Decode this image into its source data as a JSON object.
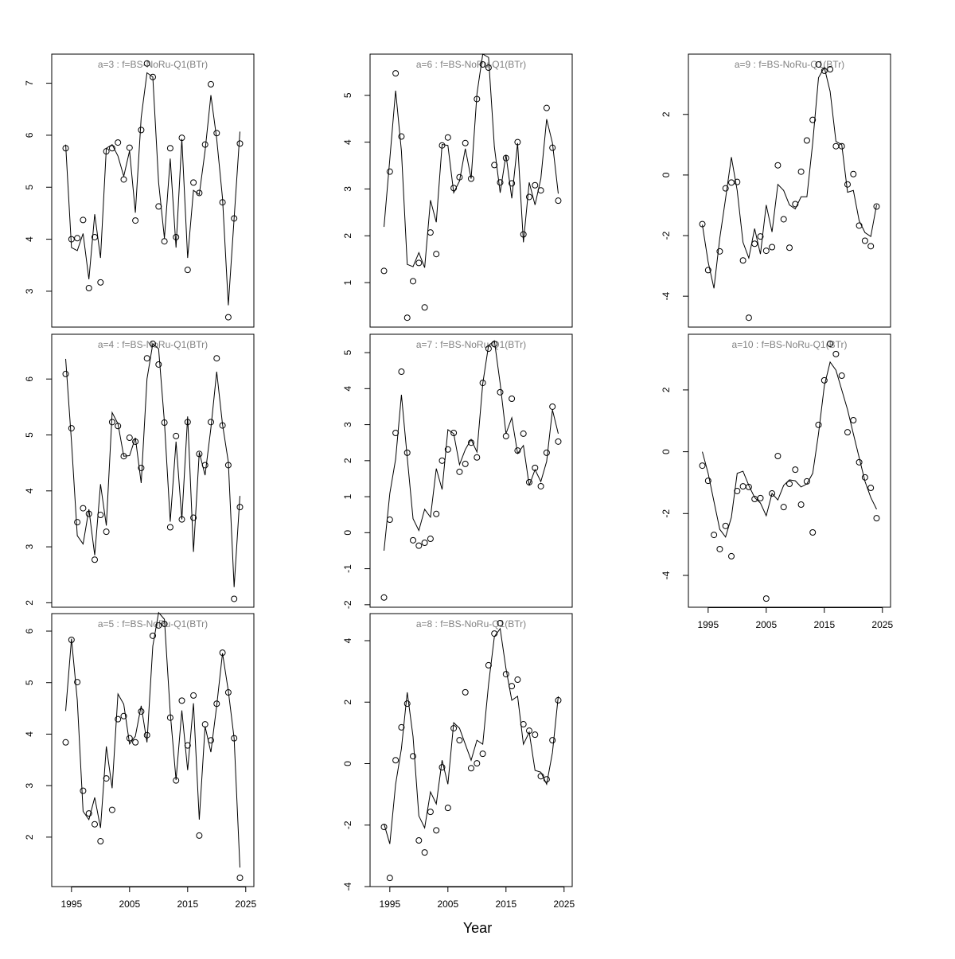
{
  "chart_data": [
    {
      "type": "line",
      "title": "a=3  :  f=BS-NoRu-Q1(BTr)",
      "x": [
        1994,
        1995,
        1996,
        1997,
        1998,
        1999,
        2000,
        2001,
        2002,
        2003,
        2004,
        2005,
        2006,
        2007,
        2008,
        2009,
        2010,
        2011,
        2012,
        2013,
        2014,
        2015,
        2016,
        2017,
        2018,
        2019,
        2020,
        2021,
        2022,
        2023,
        2024
      ],
      "series": [
        {
          "style": "points",
          "color": "#000000",
          "values": [
            5.75,
            4.0,
            4.02,
            4.37,
            3.06,
            4.04,
            3.17,
            5.69,
            5.75,
            5.86,
            5.15,
            5.76,
            4.36,
            6.1,
            7.38,
            7.12,
            4.63,
            3.96,
            5.75,
            4.04,
            5.95,
            3.41,
            5.09,
            4.89,
            5.82,
            6.98,
            6.04,
            4.71,
            2.5,
            4.4,
            5.84
          ]
        },
        {
          "style": "line",
          "color": "#000000",
          "values": [
            5.82,
            3.84,
            3.78,
            4.11,
            3.23,
            4.48,
            3.64,
            5.75,
            5.82,
            5.6,
            5.21,
            5.7,
            4.51,
            6.34,
            7.2,
            7.12,
            5.09,
            4.02,
            5.55,
            3.84,
            5.93,
            3.64,
            4.94,
            4.86,
            5.7,
            6.77,
            5.93,
            4.79,
            2.73,
            4.4,
            6.07
          ]
        }
      ],
      "xlim": [
        1991.6,
        2026.4
      ],
      "ylim": [
        2.31,
        7.56
      ],
      "yticks": [
        3,
        4,
        5,
        6,
        7
      ]
    },
    {
      "type": "line",
      "title": "a=4  :  f=BS-NoRu-Q1(BTr)",
      "x": [
        1994,
        1995,
        1996,
        1997,
        1998,
        1999,
        2000,
        2001,
        2002,
        2003,
        2004,
        2005,
        2006,
        2007,
        2008,
        2009,
        2010,
        2011,
        2012,
        2013,
        2014,
        2015,
        2016,
        2017,
        2018,
        2019,
        2020,
        2021,
        2022,
        2023,
        2024
      ],
      "series": [
        {
          "style": "points",
          "color": "#000000",
          "values": [
            6.09,
            5.12,
            3.44,
            3.69,
            3.59,
            2.77,
            3.57,
            3.27,
            5.23,
            5.16,
            4.62,
            4.95,
            4.88,
            4.41,
            6.37,
            6.63,
            6.26,
            5.22,
            3.35,
            4.98,
            3.49,
            5.23,
            3.52,
            4.66,
            4.46,
            5.23,
            6.37,
            5.17,
            4.46,
            2.07,
            3.71
          ]
        },
        {
          "style": "line",
          "color": "#000000",
          "values": [
            6.36,
            4.88,
            3.2,
            3.05,
            3.67,
            2.85,
            4.12,
            3.38,
            5.4,
            5.2,
            4.62,
            4.63,
            4.95,
            4.14,
            6.0,
            6.63,
            6.54,
            5.23,
            3.45,
            4.88,
            3.49,
            5.33,
            2.91,
            4.69,
            4.28,
            5.12,
            6.13,
            5.19,
            4.52,
            2.28,
            3.91
          ]
        }
      ],
      "xlim": [
        1991.6,
        2026.4
      ],
      "ylim": [
        1.92,
        6.8
      ],
      "yticks": [
        2,
        3,
        4,
        5,
        6
      ]
    },
    {
      "type": "line",
      "title": "a=5  :  f=BS-NoRu-Q1(BTr)",
      "x": [
        1994,
        1995,
        1996,
        1997,
        1998,
        1999,
        2000,
        2001,
        2002,
        2003,
        2004,
        2005,
        2006,
        2007,
        2008,
        2009,
        2010,
        2011,
        2012,
        2013,
        2014,
        2015,
        2016,
        2017,
        2018,
        2019,
        2020,
        2021,
        2022,
        2023,
        2024
      ],
      "series": [
        {
          "style": "points",
          "color": "#000000",
          "values": [
            3.84,
            5.83,
            5.01,
            2.9,
            2.46,
            2.25,
            1.92,
            3.14,
            2.53,
            4.29,
            4.35,
            3.92,
            3.84,
            4.44,
            3.98,
            5.91,
            6.11,
            6.14,
            4.32,
            3.1,
            4.65,
            3.78,
            4.75,
            2.03,
            4.19,
            3.88,
            4.59,
            5.58,
            4.81,
            3.92,
            1.21
          ]
        },
        {
          "style": "line",
          "color": "#000000",
          "values": [
            4.45,
            5.85,
            4.66,
            2.5,
            2.34,
            2.77,
            2.18,
            3.76,
            2.95,
            4.78,
            4.58,
            3.81,
            3.96,
            4.55,
            3.84,
            5.71,
            6.36,
            6.23,
            4.42,
            3.11,
            4.46,
            3.3,
            4.6,
            2.34,
            4.15,
            3.65,
            4.55,
            5.57,
            4.84,
            3.92,
            1.41
          ]
        }
      ],
      "xlim": [
        1991.6,
        2026.4
      ],
      "ylim": [
        1.04,
        6.34
      ],
      "yticks": [
        2,
        3,
        4,
        5,
        6
      ],
      "xticks": [
        1995,
        2005,
        2015,
        2025
      ]
    },
    {
      "type": "line",
      "title": "a=6  :  f=BS-NoRu-Q1(BTr)",
      "x": [
        1994,
        1995,
        1996,
        1997,
        1998,
        1999,
        2000,
        2001,
        2002,
        2003,
        2004,
        2005,
        2006,
        2007,
        2008,
        2009,
        2010,
        2011,
        2012,
        2013,
        2014,
        2015,
        2016,
        2017,
        2018,
        2019,
        2020,
        2021,
        2022,
        2023,
        2024
      ],
      "series": [
        {
          "style": "points",
          "color": "#000000",
          "values": [
            1.25,
            3.37,
            5.47,
            4.12,
            0.25,
            1.03,
            1.42,
            0.47,
            2.07,
            1.61,
            3.93,
            4.1,
            3.02,
            3.25,
            3.98,
            3.22,
            4.92,
            5.66,
            5.59,
            3.51,
            3.14,
            3.66,
            3.12,
            4.0,
            2.03,
            2.83,
            3.08,
            2.97,
            4.73,
            3.88,
            2.75
          ]
        },
        {
          "style": "line",
          "color": "#000000",
          "values": [
            2.19,
            3.64,
            5.1,
            3.81,
            1.39,
            1.34,
            1.64,
            1.32,
            2.76,
            2.29,
            3.95,
            3.93,
            2.92,
            3.17,
            3.86,
            3.22,
            5.03,
            5.88,
            5.81,
            3.9,
            2.92,
            3.73,
            2.8,
            3.98,
            1.86,
            3.14,
            2.66,
            3.22,
            4.49,
            3.98,
            2.9
          ]
        }
      ],
      "xlim": [
        1991.6,
        2026.4
      ],
      "ylim": [
        0.05,
        5.88
      ],
      "yticks": [
        1,
        2,
        3,
        4,
        5
      ]
    },
    {
      "type": "line",
      "title": "a=7  :  f=BS-NoRu-Q1(BTr)",
      "x": [
        1994,
        1995,
        1996,
        1997,
        1998,
        1999,
        2000,
        2001,
        2002,
        2003,
        2004,
        2005,
        2006,
        2007,
        2008,
        2009,
        2010,
        2011,
        2012,
        2013,
        2014,
        2015,
        2016,
        2017,
        2018,
        2019,
        2020,
        2021,
        2022,
        2023,
        2024
      ],
      "series": [
        {
          "style": "points",
          "color": "#000000",
          "values": [
            -1.8,
            0.36,
            2.77,
            4.47,
            2.22,
            -0.21,
            -0.36,
            -0.28,
            -0.17,
            0.52,
            2.0,
            2.31,
            2.77,
            1.69,
            1.91,
            2.5,
            2.09,
            4.16,
            5.11,
            5.24,
            3.9,
            2.68,
            3.72,
            2.28,
            2.75,
            1.4,
            1.8,
            1.29,
            2.22,
            3.5,
            2.53
          ]
        },
        {
          "style": "line",
          "color": "#000000",
          "values": [
            -0.5,
            1.09,
            2.04,
            3.83,
            2.09,
            0.39,
            0.06,
            0.65,
            0.43,
            1.78,
            1.2,
            2.86,
            2.75,
            1.89,
            2.31,
            2.59,
            2.24,
            4.14,
            5.2,
            5.33,
            4.14,
            2.75,
            3.19,
            2.2,
            2.42,
            1.31,
            1.75,
            1.42,
            1.98,
            3.41,
            2.75
          ]
        }
      ],
      "xlim": [
        1991.6,
        2026.4
      ],
      "ylim": [
        -2.07,
        5.51
      ],
      "yticks": [
        -2,
        -1,
        0,
        1,
        2,
        3,
        4,
        5
      ]
    },
    {
      "type": "line",
      "title": "a=8  :  f=BS-NoRu-Q1(BTr)",
      "xlabel": "Year",
      "x": [
        1994,
        1995,
        1996,
        1997,
        1998,
        1999,
        2000,
        2001,
        2002,
        2003,
        2004,
        2005,
        2006,
        2007,
        2008,
        2009,
        2010,
        2011,
        2012,
        2013,
        2014,
        2015,
        2016,
        2017,
        2018,
        2019,
        2020,
        2021,
        2022,
        2023,
        2024
      ],
      "series": [
        {
          "style": "points",
          "color": "#000000",
          "values": [
            -2.06,
            -3.72,
            0.11,
            1.18,
            1.95,
            0.24,
            -2.5,
            -2.89,
            -1.57,
            -2.17,
            -0.12,
            -1.44,
            1.15,
            0.76,
            2.32,
            -0.15,
            0.01,
            0.32,
            3.2,
            4.23,
            4.57,
            2.91,
            2.52,
            2.73,
            1.28,
            1.07,
            0.94,
            -0.41,
            -0.51,
            0.76,
            2.06
          ]
        },
        {
          "style": "line",
          "color": "#000000",
          "values": [
            -1.96,
            -2.61,
            -0.67,
            0.49,
            2.32,
            0.88,
            -1.7,
            -2.09,
            -0.92,
            -1.31,
            0.11,
            -0.67,
            1.33,
            1.15,
            0.63,
            0.11,
            0.76,
            0.63,
            2.58,
            4.13,
            4.39,
            3.09,
            2.06,
            2.19,
            0.63,
            1.02,
            -0.22,
            -0.28,
            -0.67,
            0.36,
            2.19
          ]
        }
      ],
      "xlim": [
        1991.6,
        2026.4
      ],
      "ylim": [
        -4.0,
        4.88
      ],
      "yticks": [
        -4,
        -2,
        0,
        2,
        4
      ],
      "xticks": [
        1995,
        2005,
        2015,
        2025
      ]
    },
    {
      "type": "line",
      "title": "a=9  :  f=BS-NoRu-Q1(BTr)",
      "x": [
        1994,
        1995,
        1996,
        1997,
        1998,
        1999,
        2000,
        2001,
        2002,
        2003,
        2004,
        2005,
        2006,
        2007,
        2008,
        2009,
        2010,
        2011,
        2012,
        2013,
        2014,
        2015,
        2016,
        2017,
        2018,
        2019,
        2020,
        2021,
        2022,
        2023,
        2024
      ],
      "series": [
        {
          "style": "points",
          "color": "#000000",
          "values": [
            -1.62,
            -3.14,
            null,
            -2.52,
            -0.44,
            -0.25,
            -0.23,
            -2.82,
            -4.71,
            -2.27,
            -2.03,
            -2.5,
            -2.38,
            0.32,
            -1.46,
            -2.4,
            -0.96,
            0.11,
            1.14,
            1.82,
            3.65,
            3.44,
            3.49,
            0.95,
            0.95,
            -0.31,
            0.03,
            -1.67,
            -2.17,
            -2.35,
            -1.04
          ]
        },
        {
          "style": "line",
          "color": "#000000",
          "values": [
            -1.64,
            -2.87,
            -3.74,
            -2.09,
            -0.78,
            0.59,
            -0.51,
            -2.22,
            -2.74,
            -1.77,
            -2.61,
            -0.99,
            -1.88,
            -0.31,
            -0.51,
            -0.99,
            -1.12,
            -0.72,
            -0.72,
            1.06,
            3.21,
            3.55,
            2.76,
            1.11,
            1.0,
            -0.57,
            -0.51,
            -1.51,
            -1.9,
            -2.03,
            -0.99
          ]
        }
      ],
      "xlim": [
        1991.6,
        2026.4
      ],
      "ylim": [
        -5.02,
        3.99
      ],
      "yticks": [
        -4,
        -2,
        0,
        2
      ]
    },
    {
      "type": "line",
      "title": "a=10  :  f=BS-NoRu-Q1(BTr)",
      "x": [
        1994,
        1995,
        1996,
        1997,
        1998,
        1999,
        2000,
        2001,
        2002,
        2003,
        2004,
        2005,
        2006,
        2007,
        2008,
        2009,
        2010,
        2011,
        2012,
        2013,
        2014,
        2015,
        2016,
        2017,
        2018,
        2019,
        2020,
        2021,
        2022,
        2023,
        2024
      ],
      "series": [
        {
          "style": "points",
          "color": "#000000",
          "values": [
            -0.45,
            -0.94,
            -2.69,
            -3.15,
            -2.4,
            -3.38,
            -1.27,
            -1.12,
            -1.14,
            -1.53,
            -1.5,
            -4.75,
            -1.35,
            -0.14,
            -1.79,
            -1.04,
            -0.58,
            -1.71,
            -0.96,
            -2.61,
            0.87,
            2.31,
            3.49,
            3.16,
            2.46,
            0.63,
            1.02,
            -0.34,
            -0.83,
            -1.17,
            -2.15
          ]
        },
        {
          "style": "line",
          "color": "#000000",
          "values": [
            0.0,
            -0.7,
            -1.61,
            -2.51,
            -2.76,
            -2.12,
            -0.7,
            -0.63,
            -1.09,
            -1.48,
            -1.66,
            -2.07,
            -1.35,
            -1.56,
            -1.09,
            -0.91,
            -0.94,
            -1.14,
            -1.04,
            -0.7,
            0.58,
            2.13,
            2.9,
            2.64,
            2.0,
            1.36,
            0.58,
            -0.19,
            -0.96,
            -1.48,
            -1.86
          ]
        }
      ],
      "xlim": [
        1991.6,
        2026.4
      ],
      "ylim": [
        -5.03,
        3.8
      ],
      "yticks": [
        -4,
        -2,
        0,
        2
      ],
      "xticks": [
        1995,
        2005,
        2015,
        2025
      ]
    }
  ]
}
